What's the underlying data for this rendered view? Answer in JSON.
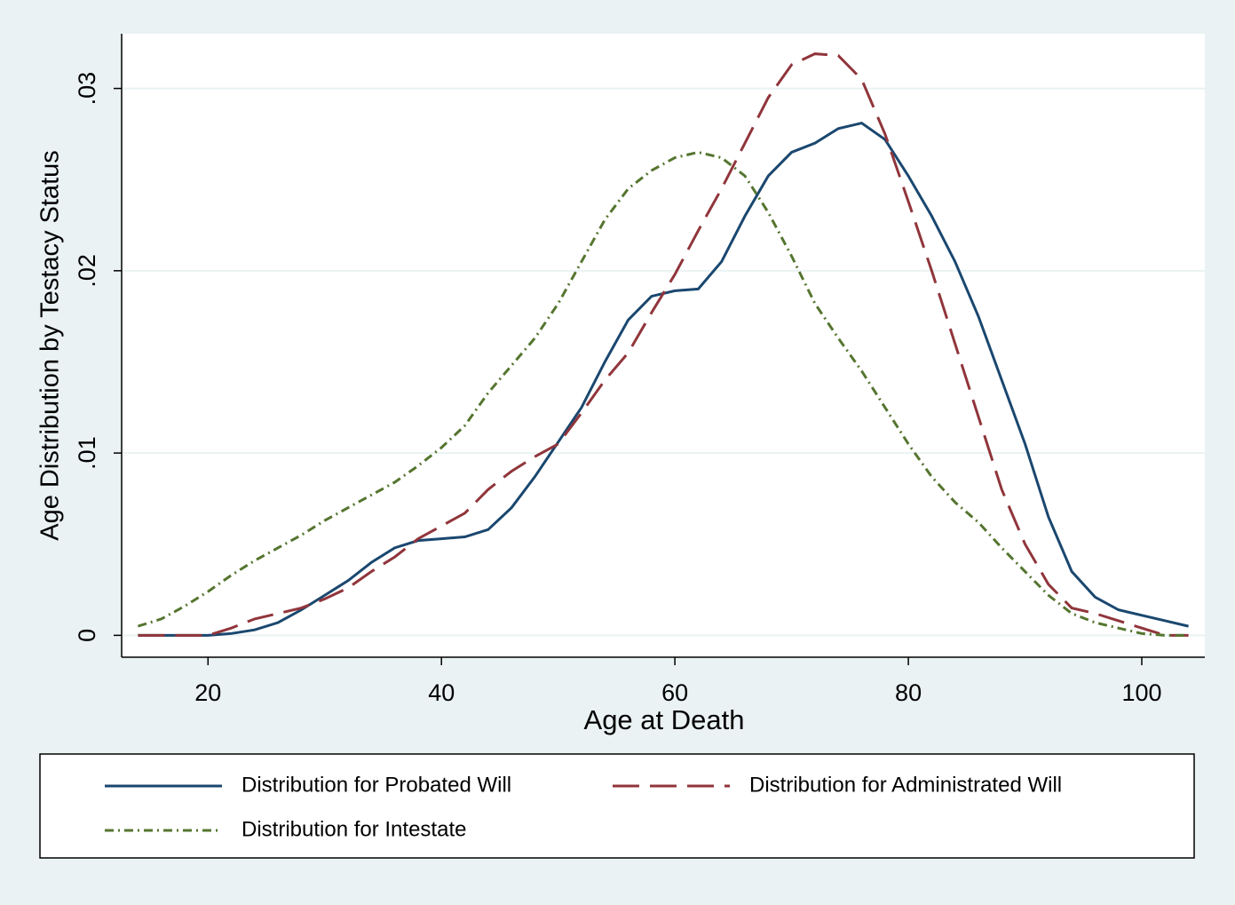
{
  "chart_data": {
    "type": "line",
    "x_label": "Age at Death",
    "y_label": "Age Distribution by Testacy Status",
    "x": [
      14,
      16,
      18,
      20,
      22,
      24,
      26,
      28,
      30,
      32,
      34,
      36,
      38,
      40,
      42,
      44,
      46,
      48,
      50,
      52,
      54,
      56,
      58,
      60,
      62,
      64,
      66,
      68,
      70,
      72,
      74,
      76,
      78,
      80,
      82,
      84,
      86,
      88,
      90,
      92,
      94,
      96,
      98,
      100,
      102,
      104
    ],
    "series": [
      {
        "name": "Distribution for Probated Will",
        "color": "#1a476f",
        "style": "solid",
        "values": [
          0,
          0,
          0,
          0,
          0.0001,
          0.0003,
          0.0007,
          0.0014,
          0.0022,
          0.003,
          0.004,
          0.0048,
          0.0052,
          0.0053,
          0.0054,
          0.0058,
          0.007,
          0.0087,
          0.0106,
          0.0125,
          0.015,
          0.0173,
          0.0186,
          0.0189,
          0.019,
          0.0205,
          0.023,
          0.0252,
          0.0265,
          0.027,
          0.0278,
          0.0281,
          0.0272,
          0.0252,
          0.023,
          0.0205,
          0.0175,
          0.014,
          0.0105,
          0.0065,
          0.0035,
          0.0021,
          0.0014,
          0.0011,
          0.0008,
          0.0005
        ]
      },
      {
        "name": "Distribution for Administrated Will",
        "color": "#90353b",
        "style": "dash",
        "values": [
          0,
          0,
          0,
          0,
          0.0004,
          0.0009,
          0.0012,
          0.0015,
          0.002,
          0.0026,
          0.0035,
          0.0043,
          0.0053,
          0.006,
          0.0067,
          0.008,
          0.009,
          0.0098,
          0.0105,
          0.0122,
          0.014,
          0.0155,
          0.0177,
          0.0198,
          0.0222,
          0.0245,
          0.027,
          0.0295,
          0.0313,
          0.0319,
          0.0318,
          0.0305,
          0.0275,
          0.0238,
          0.02,
          0.016,
          0.012,
          0.008,
          0.005,
          0.0028,
          0.0015,
          0.0012,
          0.0008,
          0.0004,
          0,
          0
        ]
      },
      {
        "name": "Distribution for Intestate",
        "color": "#55752f",
        "style": "dashdot",
        "values": [
          0.0005,
          0.0009,
          0.0016,
          0.0024,
          0.0033,
          0.0041,
          0.0048,
          0.0055,
          0.0063,
          0.007,
          0.0077,
          0.0084,
          0.0093,
          0.0103,
          0.0115,
          0.0133,
          0.0148,
          0.0163,
          0.0182,
          0.0205,
          0.0228,
          0.0245,
          0.0255,
          0.0262,
          0.0265,
          0.0262,
          0.0252,
          0.0232,
          0.0208,
          0.0182,
          0.0163,
          0.0145,
          0.0125,
          0.0105,
          0.0087,
          0.0073,
          0.0062,
          0.0048,
          0.0035,
          0.0022,
          0.0012,
          0.0007,
          0.0004,
          0.0001,
          0,
          0
        ]
      }
    ],
    "xlim": [
      12.6,
      105.4
    ],
    "xticks": [
      20,
      40,
      60,
      80,
      100
    ],
    "ylim": [
      -0.0012,
      0.033
    ],
    "yticks": [
      0,
      {
        "value": 0.01,
        "label": ".01"
      },
      {
        "value": 0.02,
        "label": ".02"
      },
      {
        "value": 0.03,
        "label": ".03"
      }
    ],
    "grid": true,
    "legend": "bottom"
  }
}
